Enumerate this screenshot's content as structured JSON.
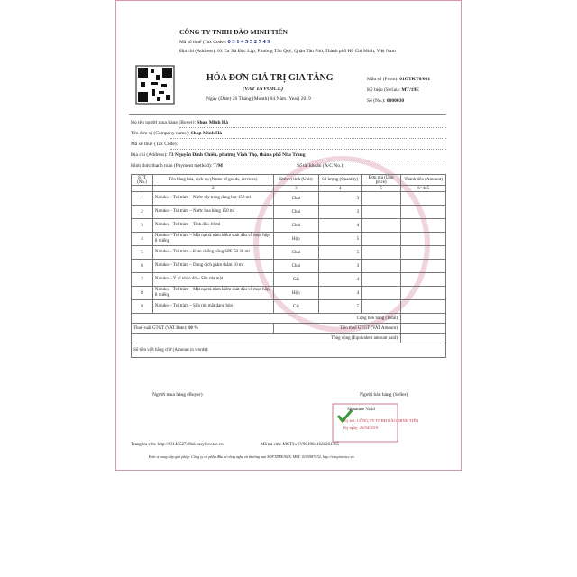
{
  "header": {
    "company": "CÔNG TY TNHH ĐÀO MINH TIẾN",
    "tax_code_label": "Mã số thuế (Tax Code):",
    "tax_code": "0 3 1 4 5 5 2 7 4 9",
    "address_label": "Địa chỉ (Address):",
    "address": "03 Cư Xá Độc Lập, Phường Tân Quý, Quận Tân Phú, Thành phố Hồ Chí Minh, Việt Nam"
  },
  "title": {
    "main": "HÓA ĐƠN GIÁ TRỊ GIA TĂNG",
    "sub": "(VAT INVOICE)",
    "date_label": "Ngày (Date)",
    "day": "26",
    "month_label": "Tháng (Month)",
    "month": "04",
    "year_label": "Năm (Year)",
    "year": "2019"
  },
  "meta": [
    {
      "label": "Mẫu số (Form):",
      "value": "01GTKT0/001"
    },
    {
      "label": "Ký hiệu (Serial):",
      "value": "MT/19E"
    },
    {
      "label": "Số (No.):",
      "value": "0000030"
    }
  ],
  "buyer": {
    "name_label": "Họ tên người mua hàng (Buyer):",
    "name": "Shop Minh Hà",
    "company_label": "Tên đơn vị (Company name):",
    "company": "Shop Minh Hà",
    "tax_label": "Mã số thuế (Tax Code):",
    "address_label": "Địa chỉ (Address):",
    "address": "73 Nguyễn Đình Chiểu, phường Vĩnh Thọ, thành phố Nha Trang",
    "payment_label": "Hình thức thanh toán (Payment method):",
    "payment": "T/M",
    "account_label": "Số tài khoản (A/C No.):"
  },
  "table": {
    "headers": [
      "STT (No.)",
      "Tên hàng hóa, dịch vụ (Name of goods, services)",
      "Đơn vị tính (Unit)",
      "Số lượng (Quantity)",
      "Đơn giá (Unit price)",
      "Thành tiền (Amount)"
    ],
    "numbering": [
      "1",
      "2",
      "3",
      "4",
      "5",
      "6=4x5"
    ],
    "rows": [
      [
        1,
        "Naruko – Trà tràm – Nước tẩy trang dạng bọt 150 ml",
        "Chai",
        3
      ],
      [
        2,
        "Naruko – Trà tràm – Nước hoa hồng 150 ml",
        "Chai",
        3
      ],
      [
        3,
        "Naruko – Trà tràm – Tinh dầu 10 ml",
        "Chai",
        4
      ],
      [
        4,
        "Naruko – Trà tràm – Mặt nạ trà tràm kiểm soát dầu và mụn hộp 8 miếng",
        "Hộp",
        5
      ],
      [
        5,
        "Naruko – Trà tràm – Kem chống nắng SPF 50 30 ml",
        "Chai",
        5
      ],
      [
        6,
        "Naruko – Trà tràm – Dung dịch giảm thâm 10 ml",
        "Chai",
        3
      ],
      [
        7,
        "Naruko – Ý dĩ nhân đỏ – Sữa rửa mặt",
        "Cái",
        4
      ],
      [
        8,
        "Naruko – Trà tràm – Mặt nạ trà tràm kiểm soát dầu và mụn hộp 8 miếng",
        "Hộp",
        4
      ],
      [
        9,
        "Naruko – Trà tràm – Sữa rửa mặt dạng bùn",
        "Cái",
        5
      ]
    ]
  },
  "summary": {
    "total_label": "Cộng tiền hàng (Total):",
    "vat_rate_label": "Thuế suất GTGT (VAT Rate):",
    "vat_rate": "10 %",
    "vat_amount_label": "Tiền thuế GTGT (VAT Amount):",
    "grand_total_label": "Tổng cộng (Equivalent amount paid):",
    "words_label": "Số tiền viết bằng chữ (Amount in words):"
  },
  "signatures": {
    "buyer": "Người mua hàng (Buyer)",
    "seller": "Người bán hàng (Seller)",
    "valid": "Signature Valid",
    "signed_by": "Ký bởi: CÔNG TY TNHH ĐÀO MINH TIẾN",
    "signed_date": "Ký ngày: 26/04/2019"
  },
  "footer": {
    "lookup_page": "Trang tra cứu: http://0314552749hd.easyinvoice.vn",
    "lookup_code": "Mã tra cứu: MST3w6V9019041628261365",
    "provider": "Đơn vị cung cấp giải pháp: Công ty cổ phần đầu tư công nghệ và thương mại SOFTDREAMS, MST: 0105987432, http://easyinvoice.vn"
  }
}
